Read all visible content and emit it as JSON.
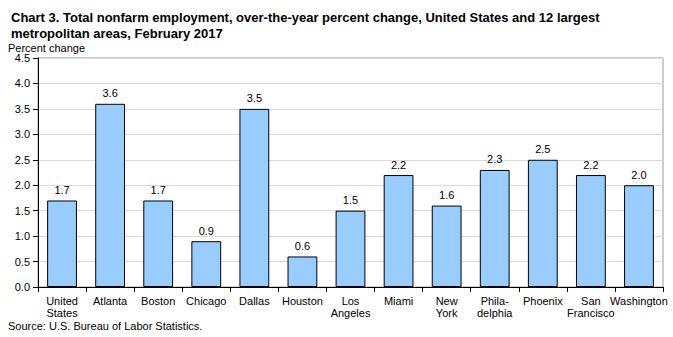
{
  "chart_data": {
    "type": "bar",
    "title": "Chart 3. Total nonfarm employment, over-the-year percent change, United States and 12 largest metropolitan areas, February 2017",
    "ylabel": "Percent change",
    "source": "Source: U.S. Bureau of Labor Statistics.",
    "categories": [
      "United\nStates",
      "Atlanta",
      "Boston",
      "Chicago",
      "Dallas",
      "Houston",
      "Los\nAngeles",
      "Miami",
      "New\nYork",
      "Phila-\ndelphia",
      "Phoenix",
      "San\nFrancisco",
      "Washington"
    ],
    "values": [
      1.7,
      3.6,
      1.7,
      0.9,
      3.5,
      0.6,
      1.5,
      2.2,
      1.6,
      2.3,
      2.5,
      2.2,
      2.0
    ],
    "value_labels": [
      "1.7",
      "3.6",
      "1.7",
      "0.9",
      "3.5",
      "0.6",
      "1.5",
      "2.2",
      "1.6",
      "2.3",
      "2.5",
      "2.2",
      "2.0"
    ],
    "data_labels": true,
    "color": "#99ccff",
    "ylim": [
      0,
      4.5
    ],
    "yticks": [
      {
        "value": 0,
        "label": "0.0"
      },
      {
        "value": 0.5,
        "label": "0.5"
      },
      {
        "value": 1,
        "label": "1.0"
      },
      {
        "value": 1.5,
        "label": "1.5"
      },
      {
        "value": 2,
        "label": "2.0"
      },
      {
        "value": 2.5,
        "label": "2.5"
      },
      {
        "value": 3,
        "label": "3.0"
      },
      {
        "value": 3.5,
        "label": "3.5"
      },
      {
        "value": 4,
        "label": "4.0"
      },
      {
        "value": 4.5,
        "label": "4.5"
      }
    ],
    "grid": true
  }
}
